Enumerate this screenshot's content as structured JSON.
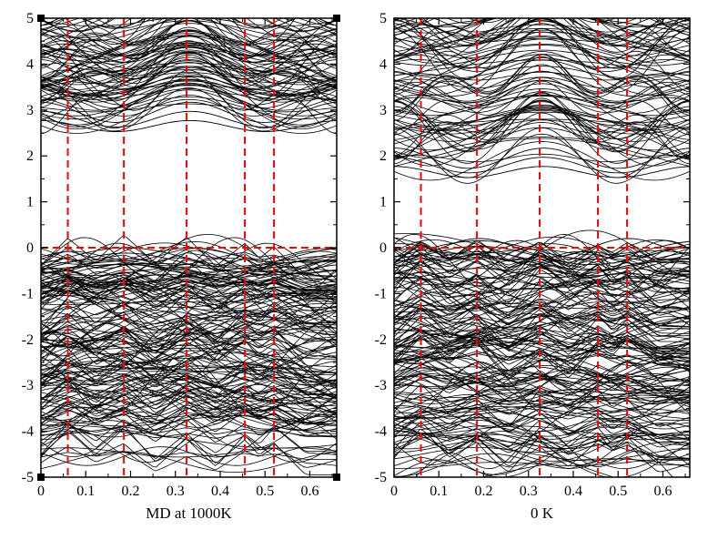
{
  "chart_data": [
    {
      "type": "line",
      "title": "",
      "xlabel": "MD at 1000K",
      "ylabel": "",
      "xlim": [
        0,
        0.66
      ],
      "ylim": [
        -5,
        5
      ],
      "x_ticks": [
        "0",
        "0.1",
        "0.2",
        "0.3",
        "0.4",
        "0.5",
        "0.6"
      ],
      "y_ticks": [
        "-5",
        "-4",
        "-3",
        "-2",
        "-1",
        "0",
        "1",
        "2",
        "3",
        "4",
        "5"
      ],
      "grid": false,
      "legend": "none",
      "reference_lines": {
        "vertical_x": [
          0.06,
          0.185,
          0.325,
          0.455,
          0.52
        ],
        "horizontal_y": [
          0
        ],
        "style": "dashed",
        "color": "#ff0000"
      },
      "band_gap": [
        0.05,
        2.5
      ],
      "valence_range": [
        -5,
        0.05
      ],
      "conduction_range": [
        2.5,
        5
      ],
      "band_color": "#000000"
    },
    {
      "type": "line",
      "title": "",
      "xlabel": "0 K",
      "ylabel": "",
      "xlim": [
        0,
        0.66
      ],
      "ylim": [
        -5,
        5
      ],
      "x_ticks": [
        "0",
        "0.1",
        "0.2",
        "0.3",
        "0.4",
        "0.5",
        "0.6"
      ],
      "y_ticks": [
        "-5",
        "-4",
        "-3",
        "-2",
        "-1",
        "0",
        "1",
        "2",
        "3",
        "4",
        "5"
      ],
      "grid": false,
      "legend": "none",
      "reference_lines": {
        "vertical_x": [
          0.06,
          0.185,
          0.325,
          0.455,
          0.52
        ],
        "horizontal_y": [
          0
        ],
        "style": "dashed",
        "color": "#ff0000"
      },
      "band_gap": [
        0.2,
        1.5
      ],
      "valence_range": [
        -5,
        0.2
      ],
      "conduction_range": [
        1.5,
        5
      ],
      "isolated_bands": [
        {
          "approx_y": 0.0,
          "amplitude": 0.2
        },
        {
          "approx_y": -0.55,
          "amplitude": 0.1
        }
      ],
      "band_color": "#000000"
    }
  ]
}
